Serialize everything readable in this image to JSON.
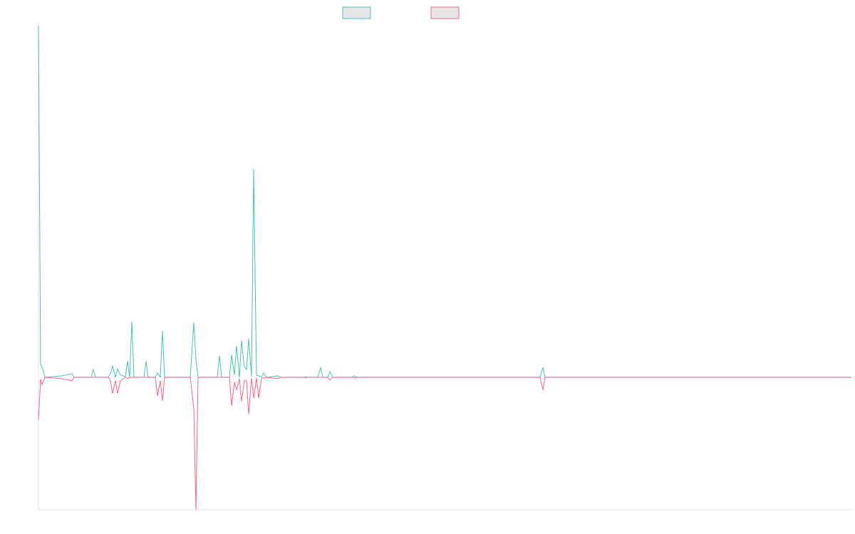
{
  "chart_data": {
    "type": "line",
    "x": [
      0,
      3,
      5,
      9,
      33,
      47,
      50,
      74,
      77,
      80,
      98,
      101,
      104,
      108,
      111,
      115,
      122,
      125,
      128,
      131,
      134,
      148,
      151,
      154,
      164,
      167,
      171,
      174,
      177,
      213,
      218,
      221,
      224,
      251,
      254,
      257,
      268,
      271,
      275,
      278,
      282,
      285,
      289,
      292,
      295,
      299,
      302,
      306,
      309,
      313,
      316,
      320,
      336,
      340,
      372,
      375,
      378,
      392,
      396,
      399,
      406,
      409,
      413,
      440,
      443,
      447,
      704,
      708,
      711,
      1141
    ],
    "series": [
      {
        "color": "#4bc0c0",
        "values": [
          100,
          3.6,
          2.8,
          0,
          0.4,
          1,
          0,
          0,
          2.2,
          0,
          0,
          1,
          3.2,
          0,
          2.4,
          0.6,
          0.2,
          4.6,
          0,
          15.8,
          0,
          0,
          4.6,
          0,
          0,
          1.2,
          0,
          13.2,
          0,
          0,
          15.6,
          5,
          0,
          0,
          6.1,
          0,
          0,
          6.3,
          0.6,
          8.9,
          0,
          10.5,
          3,
          2.2,
          10.9,
          0.2,
          59.3,
          0.6,
          0.4,
          0,
          1.2,
          0,
          0.4,
          0,
          0,
          0.2,
          0,
          0,
          2.8,
          0,
          0,
          1.6,
          0,
          0,
          0.4,
          0,
          0,
          2.8,
          0,
          0
        ]
      },
      {
        "color": "#ff6384",
        "values": [
          -12.1,
          -0.6,
          -2,
          0,
          -0.4,
          -1,
          0,
          0,
          0,
          0,
          0,
          -1,
          -4.6,
          -1,
          -4.6,
          -1,
          0,
          -0.4,
          0,
          0,
          0,
          0,
          0,
          0,
          0,
          -5.3,
          -1,
          -6.7,
          0,
          0,
          -8.9,
          -37.7,
          0,
          0,
          0,
          0,
          0,
          -8.1,
          -1.4,
          -3.6,
          -0.4,
          -6.9,
          -1,
          -1,
          -10.5,
          -0.2,
          -5.9,
          -0.2,
          -5.9,
          -0.4,
          -0.2,
          0,
          -0.4,
          0,
          0,
          -0.2,
          0,
          0,
          0,
          0,
          0,
          -0.8,
          0,
          0,
          -0.2,
          0,
          0,
          -3.6,
          0,
          0
        ]
      }
    ],
    "xlim": [
      0,
      1141
    ],
    "ylim": [
      -37.7,
      100
    ],
    "legend": "top"
  }
}
